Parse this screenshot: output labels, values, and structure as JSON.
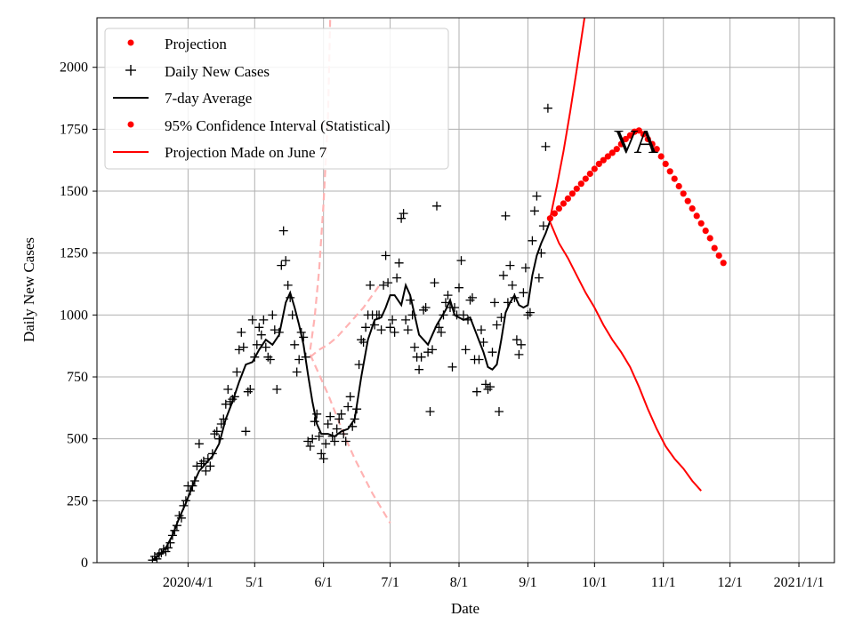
{
  "chart_data": {
    "type": "line",
    "title": "",
    "xlabel": "Date",
    "ylabel": "Daily New Cases",
    "annotation": "VA",
    "x_unit": "days since 2020-03-01",
    "xlim": [
      -10,
      322
    ],
    "ylim": [
      0,
      2200
    ],
    "grid": true,
    "legend_position": "top-left",
    "x_ticks": [
      {
        "value": 31,
        "label": "2020/4/1"
      },
      {
        "value": 61,
        "label": "5/1"
      },
      {
        "value": 92,
        "label": "6/1"
      },
      {
        "value": 122,
        "label": "7/1"
      },
      {
        "value": 153,
        "label": "8/1"
      },
      {
        "value": 184,
        "label": "9/1"
      },
      {
        "value": 214,
        "label": "10/1"
      },
      {
        "value": 245,
        "label": "11/1"
      },
      {
        "value": 275,
        "label": "12/1"
      },
      {
        "value": 306,
        "label": "2021/1/1"
      }
    ],
    "y_ticks": [
      0,
      250,
      500,
      750,
      1000,
      1250,
      1500,
      1750,
      2000
    ],
    "legend": [
      {
        "label": "Projection",
        "style": "dot",
        "color": "#ff0000"
      },
      {
        "label": "Daily New Cases",
        "style": "plus",
        "color": "#000000"
      },
      {
        "label": "7-day Average",
        "style": "line",
        "color": "#000000"
      },
      {
        "label": "95% Confidence Interval (Statistical)",
        "style": "dot",
        "color": "#ff0000"
      },
      {
        "label": "Projection Made on June 7",
        "style": "line",
        "color": "#ff0000"
      }
    ],
    "daily_new_cases": [
      [
        15,
        10
      ],
      [
        16,
        25
      ],
      [
        17,
        15
      ],
      [
        18,
        35
      ],
      [
        19,
        40
      ],
      [
        20,
        55
      ],
      [
        21,
        45
      ],
      [
        22,
        60
      ],
      [
        23,
        80
      ],
      [
        24,
        110
      ],
      [
        25,
        130
      ],
      [
        26,
        150
      ],
      [
        27,
        190
      ],
      [
        28,
        180
      ],
      [
        29,
        230
      ],
      [
        30,
        250
      ],
      [
        31,
        310
      ],
      [
        32,
        290
      ],
      [
        33,
        310
      ],
      [
        34,
        330
      ],
      [
        35,
        390
      ],
      [
        36,
        480
      ],
      [
        37,
        400
      ],
      [
        38,
        410
      ],
      [
        39,
        370
      ],
      [
        40,
        420
      ],
      [
        41,
        390
      ],
      [
        42,
        440
      ],
      [
        43,
        520
      ],
      [
        44,
        530
      ],
      [
        45,
        500
      ],
      [
        46,
        560
      ],
      [
        47,
        580
      ],
      [
        48,
        640
      ],
      [
        49,
        700
      ],
      [
        50,
        650
      ],
      [
        51,
        660
      ],
      [
        52,
        670
      ],
      [
        53,
        770
      ],
      [
        54,
        860
      ],
      [
        55,
        930
      ],
      [
        56,
        870
      ],
      [
        57,
        530
      ],
      [
        58,
        690
      ],
      [
        59,
        700
      ],
      [
        60,
        980
      ],
      [
        61,
        830
      ],
      [
        62,
        880
      ],
      [
        63,
        950
      ],
      [
        64,
        920
      ],
      [
        65,
        980
      ],
      [
        66,
        870
      ],
      [
        67,
        830
      ],
      [
        68,
        820
      ],
      [
        69,
        1000
      ],
      [
        70,
        940
      ],
      [
        71,
        700
      ],
      [
        72,
        930
      ],
      [
        73,
        1200
      ],
      [
        74,
        1340
      ],
      [
        75,
        1220
      ],
      [
        76,
        1120
      ],
      [
        77,
        1070
      ],
      [
        78,
        1000
      ],
      [
        79,
        880
      ],
      [
        80,
        770
      ],
      [
        81,
        820
      ],
      [
        82,
        930
      ],
      [
        83,
        910
      ],
      [
        84,
        830
      ],
      [
        85,
        490
      ],
      [
        86,
        470
      ],
      [
        87,
        500
      ],
      [
        88,
        570
      ],
      [
        89,
        600
      ],
      [
        90,
        510
      ],
      [
        91,
        440
      ],
      [
        92,
        420
      ],
      [
        93,
        480
      ],
      [
        94,
        560
      ],
      [
        95,
        590
      ],
      [
        96,
        510
      ],
      [
        97,
        490
      ],
      [
        98,
        540
      ],
      [
        99,
        580
      ],
      [
        100,
        600
      ],
      [
        101,
        520
      ],
      [
        102,
        490
      ],
      [
        103,
        630
      ],
      [
        104,
        670
      ],
      [
        105,
        550
      ],
      [
        106,
        580
      ],
      [
        107,
        620
      ],
      [
        108,
        800
      ],
      [
        109,
        900
      ],
      [
        110,
        890
      ],
      [
        111,
        950
      ],
      [
        112,
        1000
      ],
      [
        113,
        1120
      ],
      [
        114,
        1000
      ],
      [
        115,
        960
      ],
      [
        116,
        1000
      ],
      [
        117,
        1000
      ],
      [
        118,
        940
      ],
      [
        119,
        1120
      ],
      [
        120,
        1240
      ],
      [
        121,
        1130
      ],
      [
        122,
        950
      ],
      [
        123,
        980
      ],
      [
        124,
        930
      ],
      [
        125,
        1150
      ],
      [
        126,
        1210
      ],
      [
        127,
        1390
      ],
      [
        128,
        1410
      ],
      [
        129,
        980
      ],
      [
        130,
        940
      ],
      [
        131,
        1060
      ],
      [
        132,
        1000
      ],
      [
        133,
        870
      ],
      [
        134,
        830
      ],
      [
        135,
        780
      ],
      [
        136,
        830
      ],
      [
        137,
        1020
      ],
      [
        138,
        1030
      ],
      [
        139,
        850
      ],
      [
        140,
        610
      ],
      [
        141,
        860
      ],
      [
        142,
        1130
      ],
      [
        143,
        1440
      ],
      [
        144,
        950
      ],
      [
        145,
        930
      ],
      [
        146,
        1000
      ],
      [
        147,
        1050
      ],
      [
        148,
        1080
      ],
      [
        149,
        1030
      ],
      [
        150,
        790
      ],
      [
        151,
        1030
      ],
      [
        152,
        1000
      ],
      [
        153,
        1110
      ],
      [
        154,
        1220
      ],
      [
        155,
        1000
      ],
      [
        156,
        860
      ],
      [
        157,
        980
      ],
      [
        158,
        1060
      ],
      [
        159,
        1070
      ],
      [
        160,
        820
      ],
      [
        161,
        690
      ],
      [
        162,
        820
      ],
      [
        163,
        940
      ],
      [
        164,
        890
      ],
      [
        165,
        720
      ],
      [
        166,
        700
      ],
      [
        167,
        710
      ],
      [
        168,
        850
      ],
      [
        169,
        1050
      ],
      [
        170,
        960
      ],
      [
        171,
        610
      ],
      [
        172,
        990
      ],
      [
        173,
        1160
      ],
      [
        174,
        1400
      ],
      [
        175,
        1050
      ],
      [
        176,
        1200
      ],
      [
        177,
        1120
      ],
      [
        178,
        1070
      ],
      [
        179,
        900
      ],
      [
        180,
        840
      ],
      [
        181,
        880
      ],
      [
        182,
        1090
      ],
      [
        183,
        1190
      ],
      [
        184,
        1000
      ],
      [
        185,
        1010
      ],
      [
        186,
        1300
      ],
      [
        187,
        1420
      ],
      [
        188,
        1480
      ],
      [
        189,
        1150
      ],
      [
        190,
        1250
      ],
      [
        191,
        1360
      ],
      [
        192,
        1680
      ],
      [
        193,
        1835
      ]
    ],
    "seven_day_average": [
      [
        15,
        10
      ],
      [
        18,
        30
      ],
      [
        21,
        60
      ],
      [
        24,
        110
      ],
      [
        27,
        180
      ],
      [
        30,
        240
      ],
      [
        33,
        310
      ],
      [
        36,
        370
      ],
      [
        39,
        400
      ],
      [
        42,
        430
      ],
      [
        45,
        480
      ],
      [
        48,
        580
      ],
      [
        51,
        650
      ],
      [
        54,
        730
      ],
      [
        57,
        800
      ],
      [
        60,
        810
      ],
      [
        63,
        860
      ],
      [
        66,
        900
      ],
      [
        69,
        880
      ],
      [
        72,
        920
      ],
      [
        75,
        1050
      ],
      [
        77,
        1090
      ],
      [
        79,
        1030
      ],
      [
        81,
        960
      ],
      [
        83,
        880
      ],
      [
        85,
        760
      ],
      [
        87,
        650
      ],
      [
        89,
        560
      ],
      [
        91,
        520
      ],
      [
        94,
        520
      ],
      [
        97,
        510
      ],
      [
        100,
        530
      ],
      [
        103,
        540
      ],
      [
        106,
        580
      ],
      [
        109,
        750
      ],
      [
        112,
        900
      ],
      [
        115,
        980
      ],
      [
        118,
        990
      ],
      [
        120,
        1030
      ],
      [
        122,
        1080
      ],
      [
        124,
        1080
      ],
      [
        127,
        1040
      ],
      [
        129,
        1120
      ],
      [
        131,
        1080
      ],
      [
        133,
        1000
      ],
      [
        135,
        920
      ],
      [
        137,
        900
      ],
      [
        139,
        880
      ],
      [
        141,
        920
      ],
      [
        143,
        960
      ],
      [
        145,
        990
      ],
      [
        147,
        1020
      ],
      [
        149,
        1060
      ],
      [
        151,
        1000
      ],
      [
        155,
        980
      ],
      [
        158,
        990
      ],
      [
        161,
        920
      ],
      [
        164,
        850
      ],
      [
        166,
        790
      ],
      [
        168,
        780
      ],
      [
        170,
        800
      ],
      [
        172,
        900
      ],
      [
        174,
        1010
      ],
      [
        176,
        1050
      ],
      [
        178,
        1080
      ],
      [
        180,
        1040
      ],
      [
        182,
        1030
      ],
      [
        184,
        1040
      ],
      [
        186,
        1160
      ],
      [
        188,
        1240
      ],
      [
        190,
        1290
      ],
      [
        192,
        1330
      ],
      [
        194,
        1380
      ]
    ],
    "projection": [
      [
        194,
        1390
      ],
      [
        196,
        1410
      ],
      [
        198,
        1430
      ],
      [
        200,
        1450
      ],
      [
        202,
        1470
      ],
      [
        204,
        1490
      ],
      [
        206,
        1510
      ],
      [
        208,
        1530
      ],
      [
        210,
        1550
      ],
      [
        212,
        1570
      ],
      [
        214,
        1590
      ],
      [
        216,
        1610
      ],
      [
        218,
        1625
      ],
      [
        220,
        1640
      ],
      [
        222,
        1655
      ],
      [
        224,
        1670
      ],
      [
        226,
        1690
      ],
      [
        228,
        1710
      ],
      [
        230,
        1725
      ],
      [
        232,
        1740
      ],
      [
        234,
        1745
      ],
      [
        236,
        1730
      ],
      [
        238,
        1710
      ],
      [
        240,
        1690
      ],
      [
        242,
        1670
      ],
      [
        244,
        1640
      ],
      [
        246,
        1610
      ],
      [
        248,
        1580
      ],
      [
        250,
        1550
      ],
      [
        252,
        1520
      ],
      [
        254,
        1490
      ],
      [
        256,
        1460
      ],
      [
        258,
        1430
      ],
      [
        260,
        1400
      ],
      [
        262,
        1370
      ],
      [
        264,
        1340
      ],
      [
        266,
        1310
      ],
      [
        268,
        1270
      ],
      [
        270,
        1240
      ],
      [
        272,
        1210
      ]
    ],
    "confidence_interval_upper": [
      [
        194,
        1390
      ],
      [
        197,
        1520
      ],
      [
        200,
        1660
      ],
      [
        203,
        1820
      ],
      [
        206,
        1990
      ],
      [
        210,
        2230
      ]
    ],
    "confidence_interval_lower": [
      [
        194,
        1375
      ],
      [
        198,
        1290
      ],
      [
        202,
        1230
      ],
      [
        206,
        1160
      ],
      [
        210,
        1090
      ],
      [
        214,
        1030
      ],
      [
        218,
        960
      ],
      [
        222,
        900
      ],
      [
        226,
        850
      ],
      [
        230,
        790
      ],
      [
        234,
        710
      ],
      [
        238,
        620
      ],
      [
        242,
        540
      ],
      [
        246,
        470
      ],
      [
        250,
        420
      ],
      [
        254,
        380
      ],
      [
        258,
        330
      ],
      [
        262,
        290
      ]
    ],
    "projection_june7_upper": [
      [
        86,
        830
      ],
      [
        90,
        860
      ],
      [
        94,
        880
      ],
      [
        98,
        910
      ],
      [
        102,
        950
      ],
      [
        106,
        990
      ],
      [
        110,
        1030
      ],
      [
        114,
        1080
      ],
      [
        118,
        1130
      ]
    ],
    "projection_june7_lower": [
      [
        86,
        840
      ],
      [
        90,
        760
      ],
      [
        94,
        680
      ],
      [
        98,
        590
      ],
      [
        102,
        500
      ],
      [
        106,
        420
      ],
      [
        110,
        350
      ],
      [
        114,
        280
      ],
      [
        118,
        220
      ],
      [
        122,
        160
      ]
    ],
    "projection_june7_steep": [
      [
        86,
        860
      ],
      [
        88,
        990
      ],
      [
        90,
        1180
      ],
      [
        92,
        1450
      ],
      [
        94,
        1800
      ],
      [
        95,
        2200
      ]
    ]
  }
}
